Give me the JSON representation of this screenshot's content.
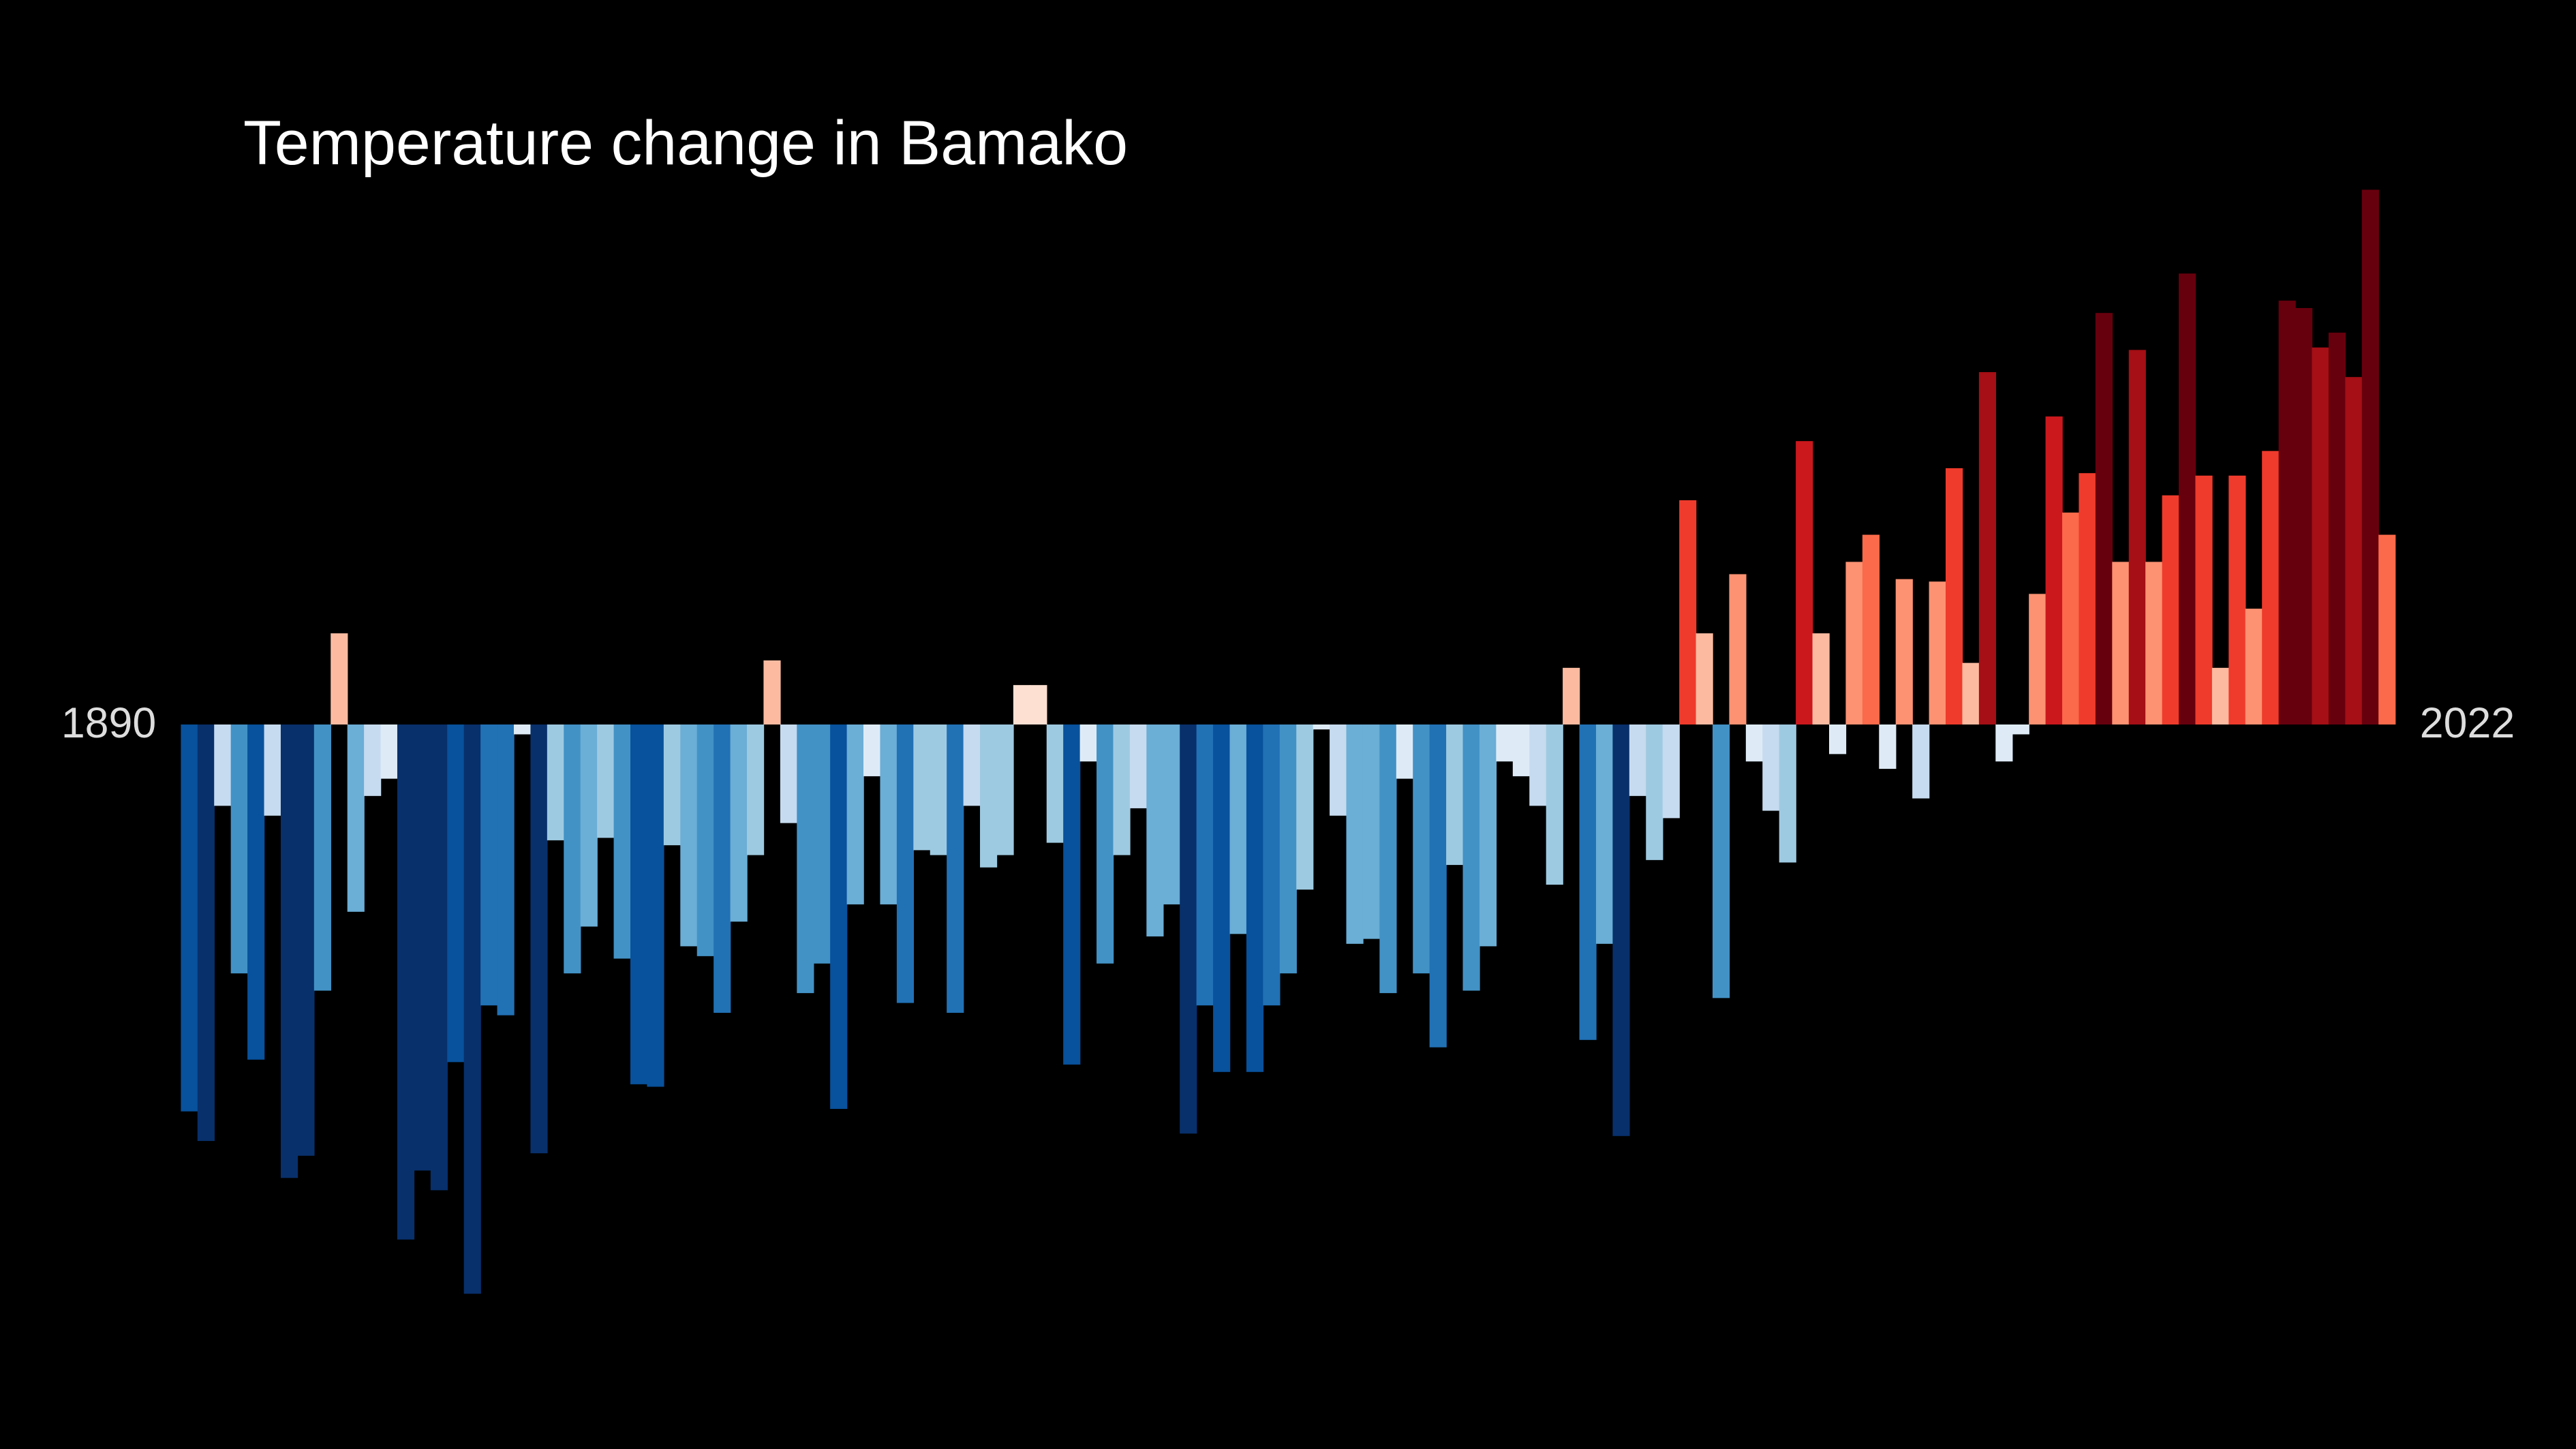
{
  "chart_data": {
    "type": "bar",
    "title": "Temperature change in Bamako",
    "x": [
      1890,
      1891,
      1892,
      1893,
      1894,
      1895,
      1896,
      1897,
      1898,
      1899,
      1900,
      1901,
      1902,
      1903,
      1904,
      1905,
      1906,
      1907,
      1908,
      1909,
      1910,
      1911,
      1912,
      1913,
      1914,
      1915,
      1916,
      1917,
      1918,
      1919,
      1920,
      1921,
      1922,
      1923,
      1924,
      1925,
      1926,
      1927,
      1928,
      1929,
      1930,
      1931,
      1932,
      1933,
      1934,
      1935,
      1936,
      1937,
      1938,
      1939,
      1940,
      1941,
      1942,
      1943,
      1944,
      1945,
      1946,
      1947,
      1948,
      1949,
      1950,
      1951,
      1952,
      1953,
      1954,
      1955,
      1956,
      1957,
      1958,
      1959,
      1960,
      1961,
      1962,
      1963,
      1964,
      1965,
      1966,
      1967,
      1968,
      1969,
      1970,
      1971,
      1972,
      1973,
      1974,
      1975,
      1976,
      1977,
      1978,
      1979,
      1980,
      1981,
      1982,
      1983,
      1984,
      1985,
      1986,
      1987,
      1988,
      1989,
      1990,
      1991,
      1992,
      1993,
      1994,
      1995,
      1996,
      1997,
      1998,
      1999,
      2000,
      2001,
      2002,
      2003,
      2004,
      2005,
      2006,
      2007,
      2008,
      2009,
      2010,
      2011,
      2012,
      2013,
      2014,
      2015,
      2016,
      2017,
      2018,
      2019,
      2020,
      2021,
      2022
    ],
    "values": [
      -1.57,
      -1.69,
      -0.33,
      -1.01,
      -1.36,
      -0.37,
      -1.84,
      -1.75,
      -1.08,
      0.37,
      -0.76,
      -0.29,
      -0.22,
      -2.09,
      -1.81,
      -1.89,
      -1.37,
      -2.31,
      -1.14,
      -1.18,
      -0.04,
      -1.74,
      -0.47,
      -1.01,
      -0.82,
      -0.46,
      -0.95,
      -1.46,
      -1.47,
      -0.49,
      -0.9,
      -0.94,
      -1.17,
      -0.8,
      -0.53,
      0.26,
      -0.4,
      -1.09,
      -0.97,
      -1.56,
      -0.73,
      -0.21,
      -0.73,
      -1.13,
      -0.51,
      -0.53,
      -1.17,
      -0.33,
      -0.58,
      -0.53,
      0.16,
      0.16,
      -0.48,
      -1.38,
      -0.15,
      -0.97,
      -0.53,
      -0.34,
      -0.86,
      -0.73,
      -1.66,
      -1.14,
      -1.41,
      -0.85,
      -1.41,
      -1.14,
      -1.01,
      -0.67,
      -0.02,
      -0.37,
      -0.89,
      -0.87,
      -1.09,
      -0.22,
      -1.01,
      -1.31,
      -0.57,
      -1.08,
      -0.9,
      -0.15,
      -0.21,
      -0.33,
      -0.65,
      0.23,
      -1.28,
      -0.89,
      -1.67,
      -0.29,
      -0.55,
      -0.38,
      0.91,
      0.37,
      -1.11,
      0.61,
      -0.15,
      -0.35,
      -0.56,
      1.15,
      0.37,
      -0.12,
      0.66,
      0.77,
      -0.18,
      0.59,
      -0.3,
      0.58,
      1.04,
      0.25,
      1.43,
      -0.15,
      -0.04,
      0.53,
      1.25,
      0.86,
      1.02,
      1.67,
      0.66,
      1.52,
      0.66,
      0.93,
      1.83,
      1.01,
      0.23,
      1.01,
      0.47,
      1.11,
      1.72,
      1.69,
      1.53,
      1.59,
      1.41,
      2.17,
      0.77
    ],
    "xlim": [
      1889.5,
      2022.5
    ],
    "ylim": [
      -2.94,
      2.94
    ],
    "colors": [
      "#08306b",
      "#08519c",
      "#2171b5",
      "#4292c6",
      "#6baed6",
      "#9ecae1",
      "#c6dbef",
      "#deebf7",
      "#fee0d2",
      "#fcbba1",
      "#fc9272",
      "#fb6a4a",
      "#ef3b2c",
      "#cb181d",
      "#a50f15",
      "#67000d"
    ],
    "clim": [
      -1.8,
      1.8
    ]
  }
}
